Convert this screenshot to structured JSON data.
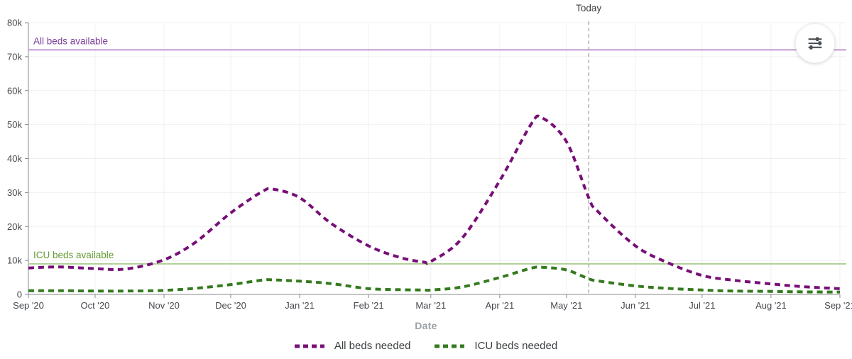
{
  "chart_data": {
    "type": "line",
    "title": "",
    "xlabel": "Date",
    "ylabel": "",
    "ylim": [
      0,
      80000
    ],
    "grid": true,
    "legend_position": "bottom",
    "x_axis": {
      "tick_days": [
        0,
        30,
        61,
        91,
        122,
        153,
        181,
        212,
        242,
        273,
        303,
        334,
        365
      ],
      "tick_labels": [
        "Sep '20",
        "Oct '20",
        "Nov '20",
        "Dec '20",
        "Jan '21",
        "Feb '21",
        "Mar '21",
        "Apr '21",
        "May '21",
        "Jun '21",
        "Jul '21",
        "Aug '21",
        "Sep '21"
      ],
      "span_days": 365
    },
    "y_axis": {
      "tick_values": [
        0,
        10000,
        20000,
        30000,
        40000,
        50000,
        60000,
        70000,
        80000
      ],
      "tick_labels": [
        "0",
        "10k",
        "20k",
        "30k",
        "40k",
        "50k",
        "60k",
        "70k",
        "80k"
      ]
    },
    "series": [
      {
        "name": "All beds needed",
        "color": "#770f77",
        "style": "dashed",
        "x_days": [
          0,
          14,
          30,
          44,
          61,
          75,
          91,
          105,
          110,
          122,
          136,
          153,
          167,
          178,
          181,
          195,
          212,
          226,
          231,
          242,
          252,
          256,
          273,
          287,
          303,
          317,
          334,
          348,
          365
        ],
        "values": [
          7800,
          8100,
          7600,
          7500,
          10200,
          15300,
          24000,
          30200,
          31000,
          28500,
          21000,
          14300,
          10900,
          9500,
          9700,
          16500,
          33500,
          50000,
          52000,
          45000,
          28500,
          24500,
          14300,
          9500,
          5600,
          4200,
          3100,
          2300,
          1700
        ]
      },
      {
        "name": "ICU beds needed",
        "color": "#347a1e",
        "style": "dashed",
        "x_days": [
          0,
          14,
          30,
          44,
          61,
          75,
          91,
          105,
          110,
          122,
          136,
          153,
          167,
          178,
          181,
          195,
          212,
          226,
          231,
          242,
          252,
          256,
          273,
          287,
          303,
          317,
          334,
          348,
          365
        ],
        "values": [
          1100,
          1100,
          1000,
          1000,
          1200,
          1800,
          2900,
          4200,
          4300,
          3900,
          3200,
          1700,
          1400,
          1300,
          1300,
          2200,
          5000,
          7700,
          8000,
          7200,
          4600,
          4000,
          2500,
          1800,
          1300,
          1000,
          900,
          750,
          700
        ]
      }
    ],
    "reference_lines": [
      {
        "label": "All beds available",
        "value": 72000,
        "line_color": "#c49bd1",
        "label_color": "#7b3f9b"
      },
      {
        "label": "ICU beds available",
        "value": 9000,
        "line_color": "#aed194",
        "label_color": "#649a35"
      }
    ],
    "annotations": [
      {
        "label": "Today",
        "x_day": 252,
        "style": "vertical-dashed",
        "line_color": "#a6a6a6"
      }
    ]
  },
  "icons": {
    "settings": "sliders-icon"
  }
}
